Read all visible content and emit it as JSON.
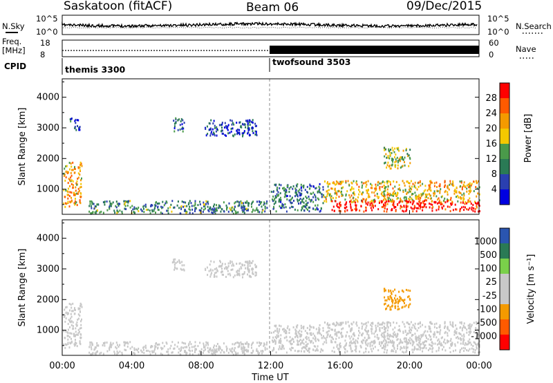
{
  "header": {
    "station": "Saskatoon (fitACF)",
    "beam": "Beam 06",
    "date": "09/Dec/2015"
  },
  "noise_panel": {
    "left_label": "N.Sky",
    "right_label": "N.Search",
    "left_ticks": [
      "10^5",
      "10^0"
    ],
    "right_ticks": [
      "10^5",
      "10^0"
    ]
  },
  "freq_panel": {
    "left_label_1": "Freq.",
    "left_label_2": "[MHz]",
    "right_label": "Nave",
    "left_ticks": [
      "18",
      "8"
    ],
    "right_ticks": [
      "60",
      "0"
    ]
  },
  "cpid": {
    "label": "CPID",
    "segments": [
      {
        "name": "themis 3300",
        "start_hour": 0,
        "end_hour": 12
      },
      {
        "name": "twofsound 3503",
        "start_hour": 12,
        "end_hour": 24
      }
    ]
  },
  "axes": {
    "ylabel": "Slant Range [km]",
    "xlabel": "Time UT",
    "x_ticks": [
      "00:00",
      "04:00",
      "08:00",
      "12:00",
      "16:00",
      "20:00",
      "00:00"
    ],
    "y_ticks": [
      "1000",
      "2000",
      "3000",
      "4000"
    ]
  },
  "power_colorbar": {
    "label": "Power [dB]",
    "ticks": [
      "28",
      "24",
      "20",
      "16",
      "12",
      "8",
      "4"
    ]
  },
  "velocity_colorbar": {
    "label": "Velocity [m s⁻¹]",
    "ticks": [
      "1000",
      "500",
      "100",
      "25",
      "-25",
      "-100",
      "-500",
      "-1000"
    ]
  },
  "chart_data": [
    {
      "type": "heatmap",
      "title": "Power",
      "xlabel": "Time UT",
      "ylabel": "Slant Range [km]",
      "xlim": [
        0,
        24
      ],
      "ylim": [
        180,
        4600
      ],
      "colorbar": {
        "label": "Power [dB]",
        "range": [
          0,
          30
        ],
        "colors": [
          "#0000e0",
          "#2a3fb0",
          "#2a7a55",
          "#4a9a4a",
          "#f4c800",
          "#f49a00",
          "#ff5a00",
          "#ff0000"
        ]
      },
      "scatter_regions": [
        {
          "t0": 0.05,
          "t1": 1.1,
          "r0": 450,
          "r1": 1900,
          "power": 20
        },
        {
          "t0": 0.4,
          "t1": 1.0,
          "r0": 2950,
          "r1": 3350,
          "power": 6
        },
        {
          "t0": 1.5,
          "t1": 11.8,
          "r0": 230,
          "r1": 650,
          "power": 10
        },
        {
          "t0": 6.3,
          "t1": 7.0,
          "r0": 2900,
          "r1": 3350,
          "power": 8
        },
        {
          "t0": 8.2,
          "t1": 11.2,
          "r0": 2750,
          "r1": 3300,
          "power": 5
        },
        {
          "t0": 12.0,
          "t1": 15.0,
          "r0": 300,
          "r1": 1200,
          "power": 9
        },
        {
          "t0": 15.0,
          "t1": 24.0,
          "r0": 600,
          "r1": 1300,
          "power": 18
        },
        {
          "t0": 15.5,
          "t1": 24.0,
          "r0": 300,
          "r1": 650,
          "power": 28
        },
        {
          "t0": 18.5,
          "t1": 20.0,
          "r0": 1700,
          "r1": 2400,
          "power": 15
        }
      ]
    },
    {
      "type": "heatmap",
      "title": "Velocity",
      "xlabel": "Time UT",
      "ylabel": "Slant Range [km]",
      "xlim": [
        0,
        24
      ],
      "ylim": [
        180,
        4600
      ],
      "colorbar": {
        "label": "Velocity [m s⁻¹]",
        "range": [
          -1000,
          1000
        ],
        "colors": [
          "#ff0000",
          "#ff5a00",
          "#f49a00",
          "#c8c8c8",
          "#c8c8c8",
          "#7ad04a",
          "#2a7a55",
          "#2a55b0"
        ]
      },
      "scatter_regions": [
        {
          "t0": 0.05,
          "t1": 1.1,
          "r0": 450,
          "r1": 1900,
          "velocity": 0
        },
        {
          "t0": 1.5,
          "t1": 11.8,
          "r0": 230,
          "r1": 650,
          "velocity": -60
        },
        {
          "t0": 6.3,
          "t1": 7.0,
          "r0": 2900,
          "r1": 3350,
          "velocity": 0
        },
        {
          "t0": 8.2,
          "t1": 11.2,
          "r0": 2750,
          "r1": 3300,
          "velocity": 0
        },
        {
          "t0": 12.0,
          "t1": 15.0,
          "r0": 300,
          "r1": 1200,
          "velocity": -10
        },
        {
          "t0": 15.0,
          "t1": 24.0,
          "r0": 600,
          "r1": 1300,
          "velocity": 0
        },
        {
          "t0": 15.5,
          "t1": 24.0,
          "r0": 300,
          "r1": 650,
          "velocity": 0
        },
        {
          "t0": 18.5,
          "t1": 20.0,
          "r0": 1700,
          "r1": 2400,
          "velocity": -300
        }
      ]
    }
  ]
}
